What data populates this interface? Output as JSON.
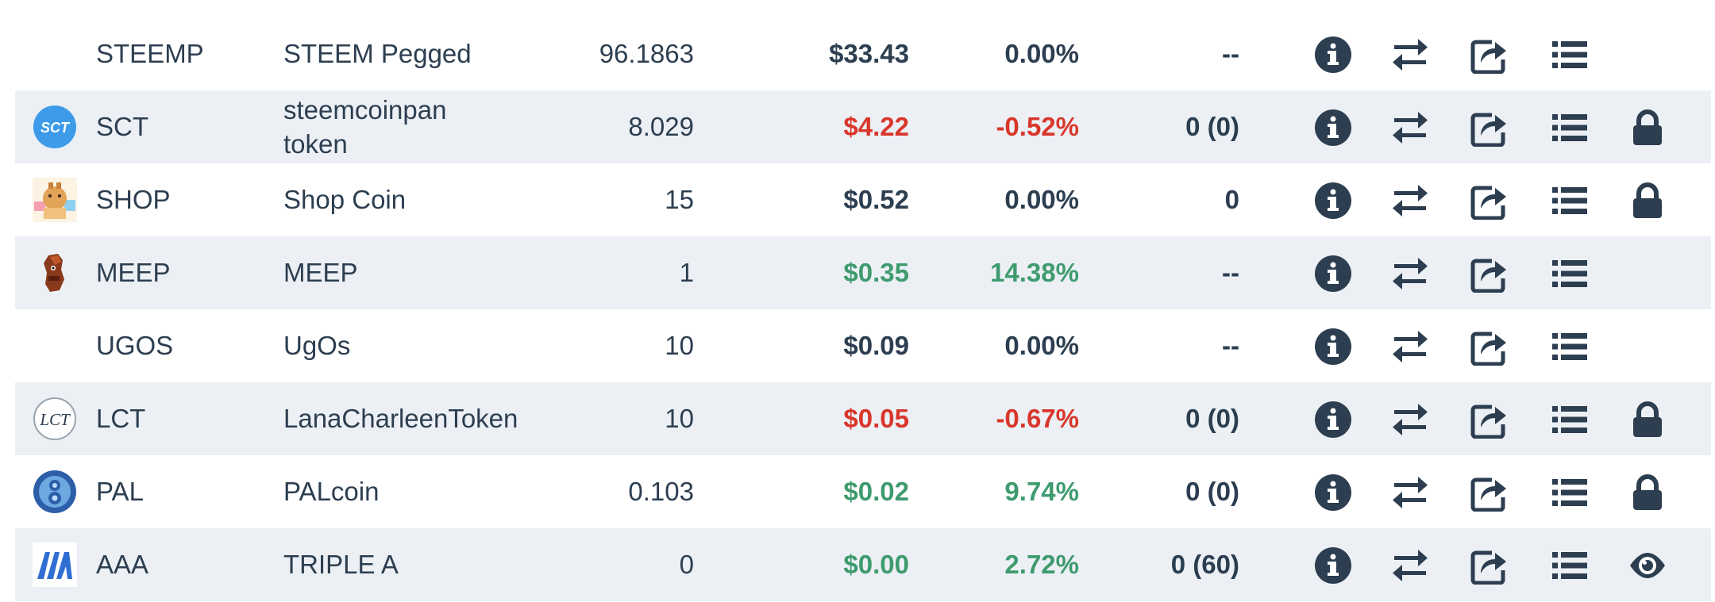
{
  "colors": {
    "text": "#2c3e50",
    "negative": "#d9362b",
    "positive": "#3f9b6f",
    "row_alt": "#ecf0f5"
  },
  "rows": [
    {
      "symbol": "STEEMP",
      "name": "STEEM Pegged",
      "balance": "96.1863",
      "price": "$33.43",
      "change": "0.00%",
      "stake": "--",
      "trend": "neutral",
      "extra_icon": "",
      "logo": "none"
    },
    {
      "symbol": "SCT",
      "name": "steemcoinpan token",
      "balance": "8.029",
      "price": "$4.22",
      "change": "-0.52%",
      "stake": "0 (0)",
      "trend": "down",
      "extra_icon": "lock-icon",
      "logo": "sct",
      "logo_text": "SCT"
    },
    {
      "symbol": "SHOP",
      "name": "Shop Coin",
      "balance": "15",
      "price": "$0.52",
      "change": "0.00%",
      "stake": "0",
      "trend": "neutral",
      "extra_icon": "lock-icon",
      "logo": "shop"
    },
    {
      "symbol": "MEEP",
      "name": "MEEP",
      "balance": "1",
      "price": "$0.35",
      "change": "14.38%",
      "stake": "--",
      "trend": "up",
      "extra_icon": "",
      "logo": "meep"
    },
    {
      "symbol": "UGOS",
      "name": "UgOs",
      "balance": "10",
      "price": "$0.09",
      "change": "0.00%",
      "stake": "--",
      "trend": "neutral",
      "extra_icon": "",
      "logo": "none"
    },
    {
      "symbol": "LCT",
      "name": "LanaCharleenToken",
      "balance": "10",
      "price": "$0.05",
      "change": "-0.67%",
      "stake": "0 (0)",
      "trend": "down",
      "extra_icon": "lock-icon",
      "logo": "lct",
      "logo_text": "LCT"
    },
    {
      "symbol": "PAL",
      "name": "PALcoin",
      "balance": "0.103",
      "price": "$0.02",
      "change": "9.74%",
      "stake": "0 (0)",
      "trend": "up",
      "extra_icon": "lock-icon",
      "logo": "pal"
    },
    {
      "symbol": "AAA",
      "name": "TRIPLE A",
      "balance": "0",
      "price": "$0.00",
      "change": "2.72%",
      "stake": "0 (60)",
      "trend": "up",
      "extra_icon": "eye-icon",
      "logo": "aaa"
    }
  ]
}
